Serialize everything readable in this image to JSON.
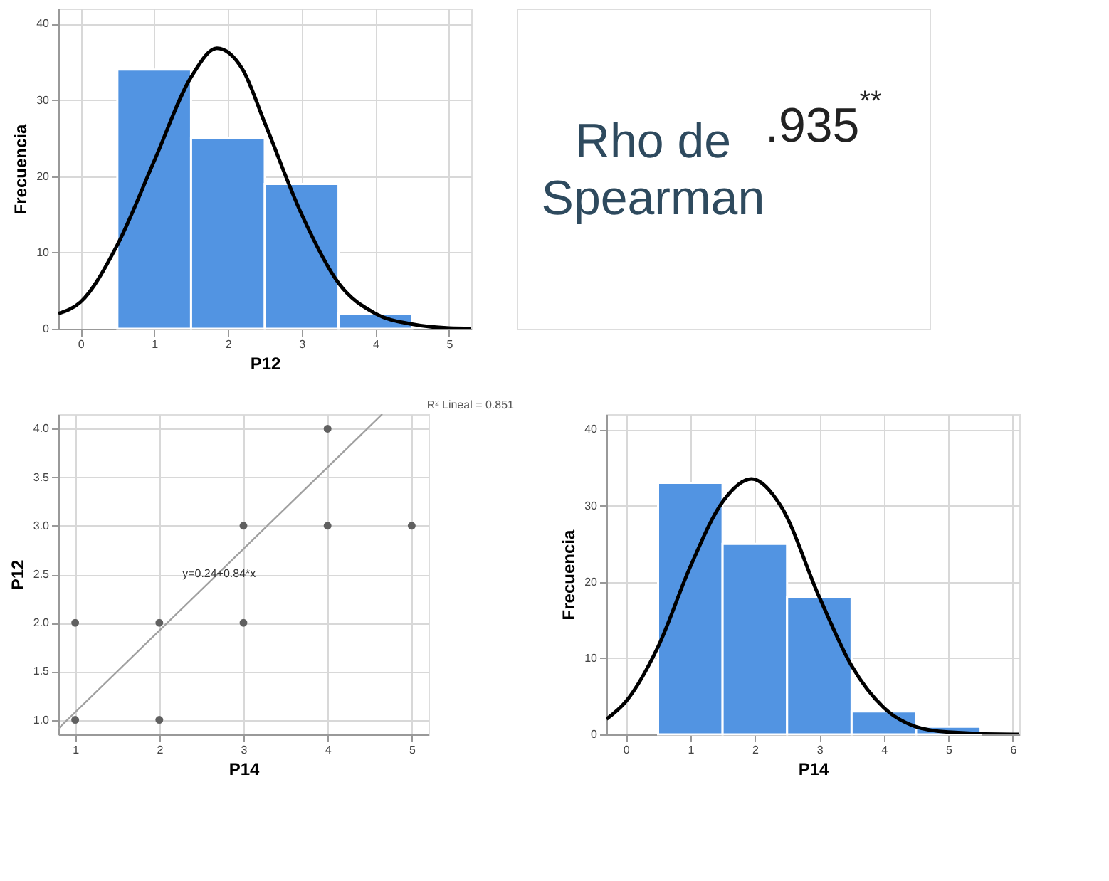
{
  "chart_data": [
    {
      "type": "histogram",
      "xlabel": "P12",
      "ylabel": "Frecuencia",
      "bins": [
        0.5,
        1.5,
        2.5,
        3.5,
        4.5
      ],
      "values": [
        34,
        25,
        19,
        2
      ],
      "color": "#5294e2",
      "xlim": [
        -0.3,
        5.3
      ],
      "xticks": [
        0,
        1,
        2,
        3,
        4,
        5
      ],
      "ylim": [
        0,
        42
      ],
      "yticks": [
        0,
        10,
        20,
        30,
        40
      ],
      "grid": true,
      "series": [
        {
          "type": "line",
          "color": "#000000",
          "x": [
            -0.3,
            0,
            0.5,
            1,
            1.5,
            1.85,
            2.2,
            2.5,
            3,
            3.5,
            4,
            4.5,
            5,
            5.3
          ],
          "values": [
            2,
            3.5,
            11,
            22,
            33,
            36.8,
            34,
            27,
            15,
            6,
            2,
            0.6,
            0.1,
            0.05
          ]
        }
      ]
    },
    {
      "type": "other",
      "annotations": [
        "Rho de Spearman",
        ".935$^{**}$"
      ],
      "color": "#2e4a5e"
    },
    {
      "type": "scatter",
      "xlabel": "P14",
      "ylabel": "P12",
      "xlim": [
        0.8,
        5.2
      ],
      "xticks": [
        1,
        2,
        3,
        4,
        5
      ],
      "ylim": [
        0.85,
        4.15
      ],
      "yticks": [
        {
          "value": 1,
          "label": "1.0"
        },
        {
          "value": 1.5,
          "label": "1.5"
        },
        {
          "value": 2,
          "label": "2.0"
        },
        {
          "value": 2.5,
          "label": "2.5"
        },
        {
          "value": 3,
          "label": "3.0"
        },
        {
          "value": 3.5,
          "label": "3.5"
        },
        {
          "value": 4,
          "label": "4.0"
        }
      ],
      "grid": true,
      "series": [
        {
          "type": "scatter",
          "marker": "circle",
          "color": "#606060",
          "x": [
            1,
            1,
            2,
            2,
            3,
            3,
            4,
            4,
            5
          ],
          "values": [
            1,
            2,
            1,
            2,
            2,
            3,
            3,
            4,
            3
          ]
        },
        {
          "type": "line",
          "marker": "none",
          "color": "#a0a0a0",
          "x": [
            0.8,
            4.65
          ],
          "values": [
            0.91,
            4.15
          ]
        }
      ],
      "annotations": [
        {
          "text": "y=0.24+0.84*x",
          "x": 2.71,
          "y": 2.5
        },
        "R² Lineal = 0.851"
      ]
    },
    {
      "type": "histogram",
      "xlabel": "P14",
      "ylabel": "Frecuencia",
      "bins": [
        0.5,
        1.5,
        2.5,
        3.5,
        4.5,
        5.5
      ],
      "values": [
        33,
        25,
        18,
        3,
        1
      ],
      "color": "#5294e2",
      "xlim": [
        -0.3,
        6.1
      ],
      "xticks": [
        0,
        1,
        2,
        3,
        4,
        5,
        6
      ],
      "ylim": [
        0,
        42
      ],
      "yticks": [
        0,
        10,
        20,
        30,
        40
      ],
      "grid": true,
      "series": [
        {
          "type": "line",
          "color": "#000000",
          "x": [
            -0.3,
            0,
            0.5,
            1,
            1.5,
            1.95,
            2.4,
            3,
            3.5,
            4,
            4.5,
            5,
            6,
            6.1
          ],
          "values": [
            2,
            4.3,
            11.5,
            22,
            30.5,
            33.5,
            30,
            18,
            9,
            3.5,
            1,
            0.3,
            0,
            0
          ]
        }
      ]
    }
  ]
}
